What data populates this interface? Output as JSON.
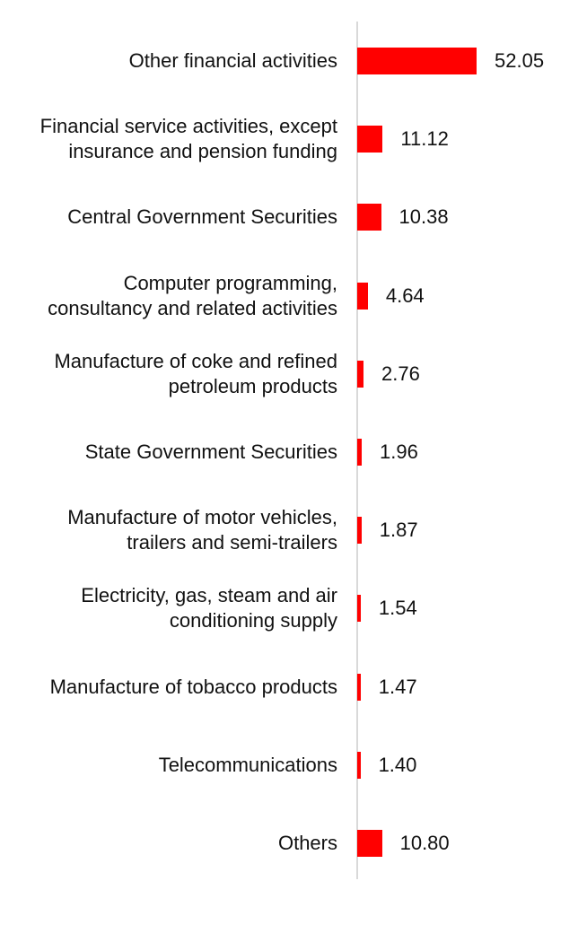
{
  "colors": {
    "bar": "#ff0000",
    "axis": "#d9d9d9",
    "text": "#111111"
  },
  "chart_data": {
    "type": "bar",
    "orientation": "horizontal",
    "categories": [
      "Other financial activities",
      "Financial service activities, except insurance and pension funding",
      "Central Government Securities",
      "Computer programming, consultancy and related activities",
      "Manufacture of coke and refined petroleum products",
      "State Government Securities",
      "Manufacture of motor vehicles, trailers and semi-trailers",
      "Electricity, gas, steam and air conditioning supply",
      "Manufacture of tobacco products",
      "Telecommunications",
      "Others"
    ],
    "values": [
      52.05,
      11.12,
      10.38,
      4.64,
      2.76,
      1.96,
      1.87,
      1.54,
      1.47,
      1.4,
      10.8
    ],
    "value_labels": [
      "52.05",
      "11.12",
      "10.38",
      "4.64",
      "2.76",
      "1.96",
      "1.87",
      "1.54",
      "1.47",
      "1.40",
      "10.80"
    ],
    "xlim": [
      0,
      55
    ],
    "grid": false,
    "legend": "none"
  }
}
